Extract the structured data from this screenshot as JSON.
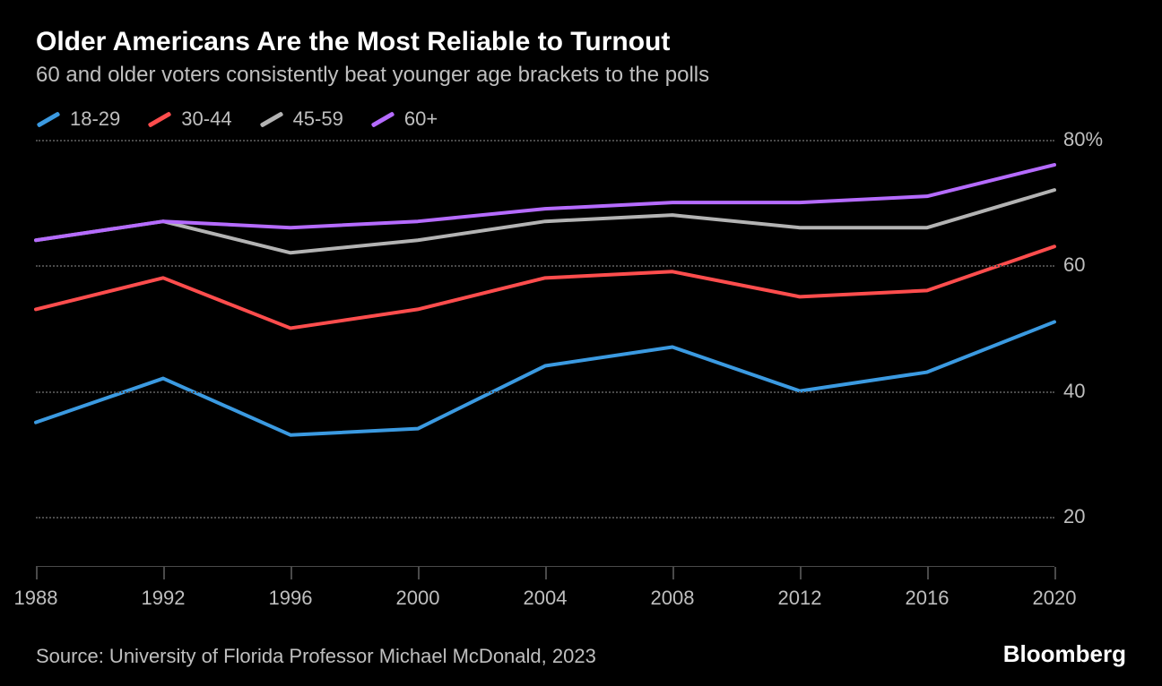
{
  "header": {
    "title": "Older Americans Are the Most Reliable to Turnout",
    "subtitle": "60 and older voters consistently beat younger age brackets to the polls"
  },
  "chart": {
    "type": "line",
    "background_color": "#000000",
    "grid_color": "#4a4a4a",
    "text_color": "#bfbfbf",
    "title_color": "#ffffff",
    "line_width": 4,
    "xlim": [
      1988,
      2020
    ],
    "ylim": [
      12,
      80
    ],
    "yticks": [
      20,
      40,
      60,
      80
    ],
    "ytick_labels": [
      "20",
      "40",
      "60",
      "80%"
    ],
    "xticks": [
      1988,
      1992,
      1996,
      2000,
      2004,
      2008,
      2012,
      2016,
      2020
    ],
    "xtick_labels": [
      "1988",
      "1992",
      "1996",
      "2000",
      "2004",
      "2008",
      "2012",
      "2016",
      "2020"
    ],
    "series": [
      {
        "name": "18-29",
        "color": "#3b9ae1",
        "x": [
          1988,
          1992,
          1996,
          2000,
          2004,
          2008,
          2012,
          2016,
          2020
        ],
        "y": [
          35,
          42,
          33,
          34,
          44,
          47,
          40,
          43,
          51
        ]
      },
      {
        "name": "30-44",
        "color": "#ff4d4d",
        "x": [
          1988,
          1992,
          1996,
          2000,
          2004,
          2008,
          2012,
          2016,
          2020
        ],
        "y": [
          53,
          58,
          50,
          53,
          58,
          59,
          55,
          56,
          63
        ]
      },
      {
        "name": "45-59",
        "color": "#b3b3b3",
        "x": [
          1988,
          1992,
          1996,
          2000,
          2004,
          2008,
          2012,
          2016,
          2020
        ],
        "y": [
          64,
          67,
          62,
          64,
          67,
          68,
          66,
          66,
          72
        ]
      },
      {
        "name": "60+",
        "color": "#b56bff",
        "x": [
          1988,
          1992,
          1996,
          2000,
          2004,
          2008,
          2012,
          2016,
          2020
        ],
        "y": [
          64,
          67,
          66,
          67,
          69,
          70,
          70,
          71,
          76
        ]
      }
    ],
    "legend_fontsize": 22,
    "axis_fontsize": 22,
    "title_fontsize": 30,
    "subtitle_fontsize": 24
  },
  "footer": {
    "source": "Source: University of Florida Professor Michael McDonald, 2023",
    "brand": "Bloomberg"
  }
}
